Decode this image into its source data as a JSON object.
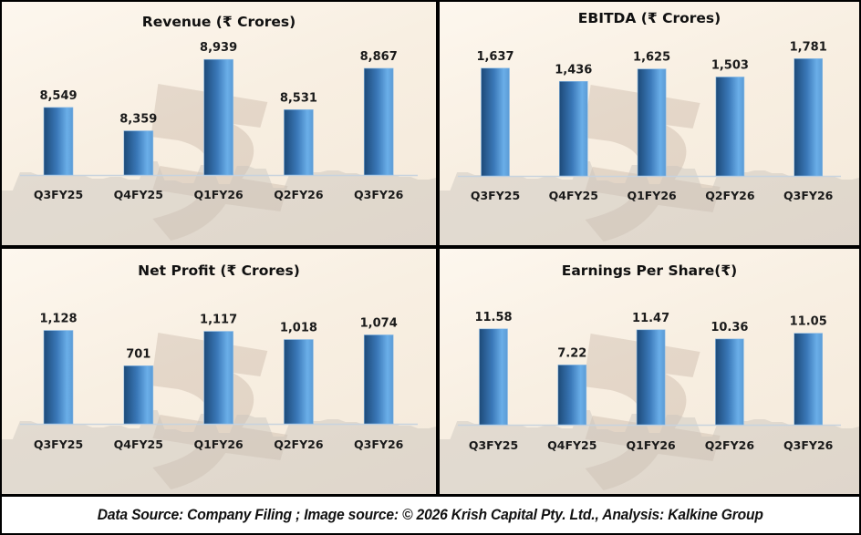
{
  "footer": {
    "text": "Data Source: Company Filing ; Image source: © 2026 Krish Capital Pty. Ltd., Analysis: Kalkine Group"
  },
  "colors": {
    "bar_dark": "#1d4a78",
    "bar_mid": "#3a78b8",
    "bar_light": "#6aaee8",
    "axis": "#c8d3de",
    "background": "#fbf4ea",
    "border": "#000000"
  },
  "chart_data": [
    {
      "id": "revenue",
      "type": "bar",
      "title": "Revenue (₹ Crores)",
      "categories": [
        "Q3FY25",
        "Q4FY25",
        "Q1FY26",
        "Q2FY26",
        "Q3FY26"
      ],
      "values": [
        8549,
        8359,
        8939,
        8531,
        8867
      ],
      "labels": [
        "8,549",
        "8,359",
        "8,939",
        "8,531",
        "8,867"
      ],
      "xlabel": "",
      "ylabel": "",
      "ylim": [
        8000,
        9000
      ],
      "grid": false,
      "legend": "none"
    },
    {
      "id": "ebitda",
      "type": "bar",
      "title": "EBITDA (₹ Crores)",
      "categories": [
        "Q3FY25",
        "Q4FY25",
        "Q1FY26",
        "Q2FY26",
        "Q3FY26"
      ],
      "values": [
        1637,
        1436,
        1625,
        1503,
        1781
      ],
      "labels": [
        "1,637",
        "1,436",
        "1,625",
        "1,503",
        "1,781"
      ],
      "xlabel": "",
      "ylabel": "",
      "ylim": [
        0,
        1800
      ],
      "grid": false,
      "legend": "none"
    },
    {
      "id": "net-profit",
      "type": "bar",
      "title": "Net Profit (₹ Crores)",
      "categories": [
        "Q3FY25",
        "Q4FY25",
        "Q1FY26",
        "Q2FY26",
        "Q3FY26"
      ],
      "values": [
        1128,
        701,
        1117,
        1018,
        1074
      ],
      "labels": [
        "1,128",
        "701",
        "1,117",
        "1,018",
        "1,074"
      ],
      "xlabel": "",
      "ylabel": "",
      "ylim": [
        0,
        1200
      ],
      "grid": false,
      "legend": "none"
    },
    {
      "id": "eps",
      "type": "bar",
      "title": "Earnings Per Share(₹)",
      "categories": [
        "Q3FY25",
        "Q4FY25",
        "Q1FY26",
        "Q2FY26",
        "Q3FY26"
      ],
      "values": [
        11.58,
        7.22,
        11.47,
        10.36,
        11.05
      ],
      "labels": [
        "11.58",
        "7.22",
        "11.47",
        "10.36",
        "11.05"
      ],
      "xlabel": "",
      "ylabel": "",
      "ylim": [
        0,
        12
      ],
      "grid": false,
      "legend": "none"
    }
  ]
}
